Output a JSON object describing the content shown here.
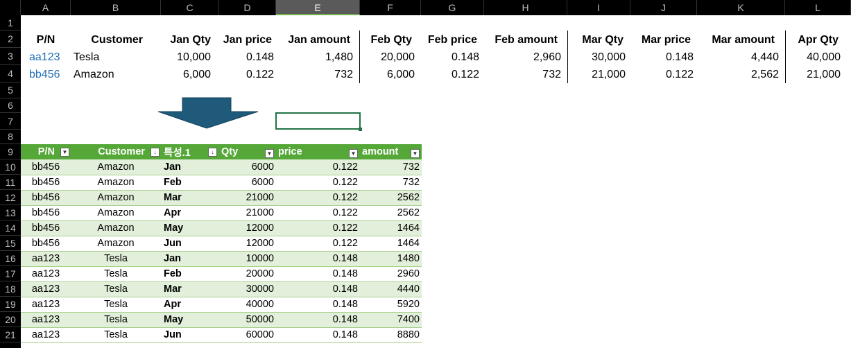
{
  "columns": [
    "A",
    "B",
    "C",
    "D",
    "E",
    "F",
    "G",
    "H",
    "I",
    "J",
    "K",
    "L"
  ],
  "selected_column": "E",
  "rows": [
    "1",
    "2",
    "3",
    "4",
    "5",
    "6",
    "7",
    "8",
    "9",
    "10",
    "11",
    "12",
    "13",
    "14",
    "15",
    "16",
    "17",
    "18",
    "19",
    "20",
    "21"
  ],
  "top": {
    "headers": [
      "P/N",
      "Customer",
      "Jan Qty",
      "Jan price",
      "Jan amount",
      "Feb Qty",
      "Feb price",
      "Feb amount",
      "Mar Qty",
      "Mar price",
      "Mar amount",
      "Apr Qty"
    ],
    "rows": [
      [
        "aa123",
        "Tesla",
        "10,000",
        "0.148",
        "1,480",
        "20,000",
        "0.148",
        "2,960",
        "30,000",
        "0.148",
        "4,440",
        "40,000"
      ],
      [
        "bb456",
        "Amazon",
        "6,000",
        "0.122",
        "732",
        "6,000",
        "0.122",
        "732",
        "21,000",
        "0.122",
        "2,562",
        "21,000"
      ]
    ]
  },
  "table": {
    "headers": [
      "P/N",
      "Customer",
      "특성.1",
      "Qty",
      "price",
      "amount"
    ],
    "rows": [
      [
        "bb456",
        "Amazon",
        "Jan",
        "6000",
        "0.122",
        "732"
      ],
      [
        "bb456",
        "Amazon",
        "Feb",
        "6000",
        "0.122",
        "732"
      ],
      [
        "bb456",
        "Amazon",
        "Mar",
        "21000",
        "0.122",
        "2562"
      ],
      [
        "bb456",
        "Amazon",
        "Apr",
        "21000",
        "0.122",
        "2562"
      ],
      [
        "bb456",
        "Amazon",
        "May",
        "12000",
        "0.122",
        "1464"
      ],
      [
        "bb456",
        "Amazon",
        "Jun",
        "12000",
        "0.122",
        "1464"
      ],
      [
        "aa123",
        "Tesla",
        "Jan",
        "10000",
        "0.148",
        "1480"
      ],
      [
        "aa123",
        "Tesla",
        "Feb",
        "20000",
        "0.148",
        "2960"
      ],
      [
        "aa123",
        "Tesla",
        "Mar",
        "30000",
        "0.148",
        "4440"
      ],
      [
        "aa123",
        "Tesla",
        "Apr",
        "40000",
        "0.148",
        "5920"
      ],
      [
        "aa123",
        "Tesla",
        "May",
        "50000",
        "0.148",
        "7400"
      ],
      [
        "aa123",
        "Tesla",
        "Jun",
        "60000",
        "0.148",
        "8880"
      ]
    ]
  },
  "colors": {
    "table_header": "#55a838",
    "band": "#e2efda",
    "arrow": "#1f5a7a",
    "selection": "#217346",
    "link": "#1f6db8"
  }
}
